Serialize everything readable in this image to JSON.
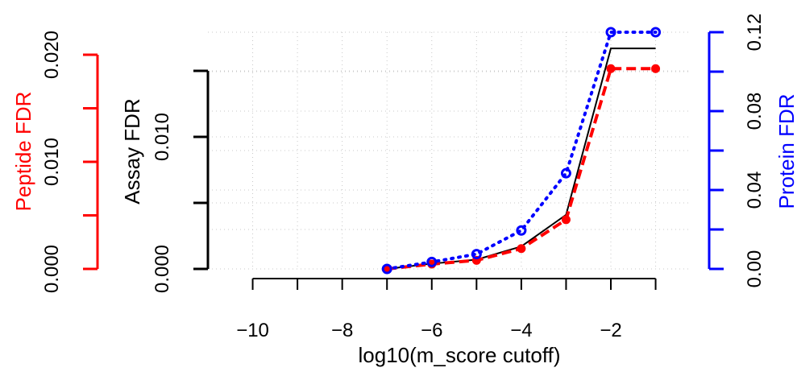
{
  "chart_data": {
    "type": "line",
    "xlabel": "log10(m_score cutoff)",
    "xlim": [
      -11,
      -0.2
    ],
    "x_ticks": [
      -10,
      -9,
      -8,
      -7,
      -6,
      -5,
      -4,
      -3,
      -2,
      -1
    ],
    "x_tick_labels": [
      "−10",
      "",
      "−8",
      "",
      "−6",
      "",
      "−4",
      "",
      "−2",
      ""
    ],
    "grid": true,
    "y_axes": [
      {
        "key": "peptide",
        "label": "Peptide FDR",
        "color": "#ff0000",
        "lim": [
          0,
          0.0205
        ],
        "ticks": [
          0,
          0.005,
          0.01,
          0.015,
          0.02
        ],
        "tick_labels": [
          "0.000",
          "",
          "0.010",
          "",
          "0.020"
        ]
      },
      {
        "key": "assay",
        "label": "Assay FDR",
        "color": "#000000",
        "lim": [
          0,
          0.0183
        ],
        "ticks": [
          0,
          0.005,
          0.01,
          0.015
        ],
        "tick_labels": [
          "0.000",
          "",
          "0.010",
          ""
        ]
      },
      {
        "key": "protein",
        "label": "Protein FDR",
        "color": "#0000ff",
        "lim": [
          0,
          0.122
        ],
        "ticks": [
          0,
          0.02,
          0.04,
          0.06,
          0.08,
          0.1,
          0.12
        ],
        "tick_labels": [
          "0.00",
          "",
          "0.04",
          "",
          "0.08",
          "",
          "0.12"
        ]
      }
    ],
    "x": [
      -7,
      -6,
      -5,
      -4,
      -3,
      -2,
      -1
    ],
    "series": [
      {
        "axis": "assay",
        "color": "#000000",
        "line_style": "solid",
        "values": [
          0.0,
          0.0004,
          0.0007,
          0.0017,
          0.0041,
          0.0167,
          0.0167
        ]
      },
      {
        "axis": "peptide",
        "color": "#ff0000",
        "line_style": "dashed",
        "values": [
          0.0,
          0.00045,
          0.0008,
          0.0019,
          0.0046,
          0.0187,
          0.0187
        ]
      },
      {
        "axis": "protein",
        "color": "#0000ff",
        "line_style": "dotted",
        "values": [
          0.0,
          0.0035,
          0.0075,
          0.0195,
          0.0485,
          0.12,
          0.12
        ]
      }
    ]
  }
}
